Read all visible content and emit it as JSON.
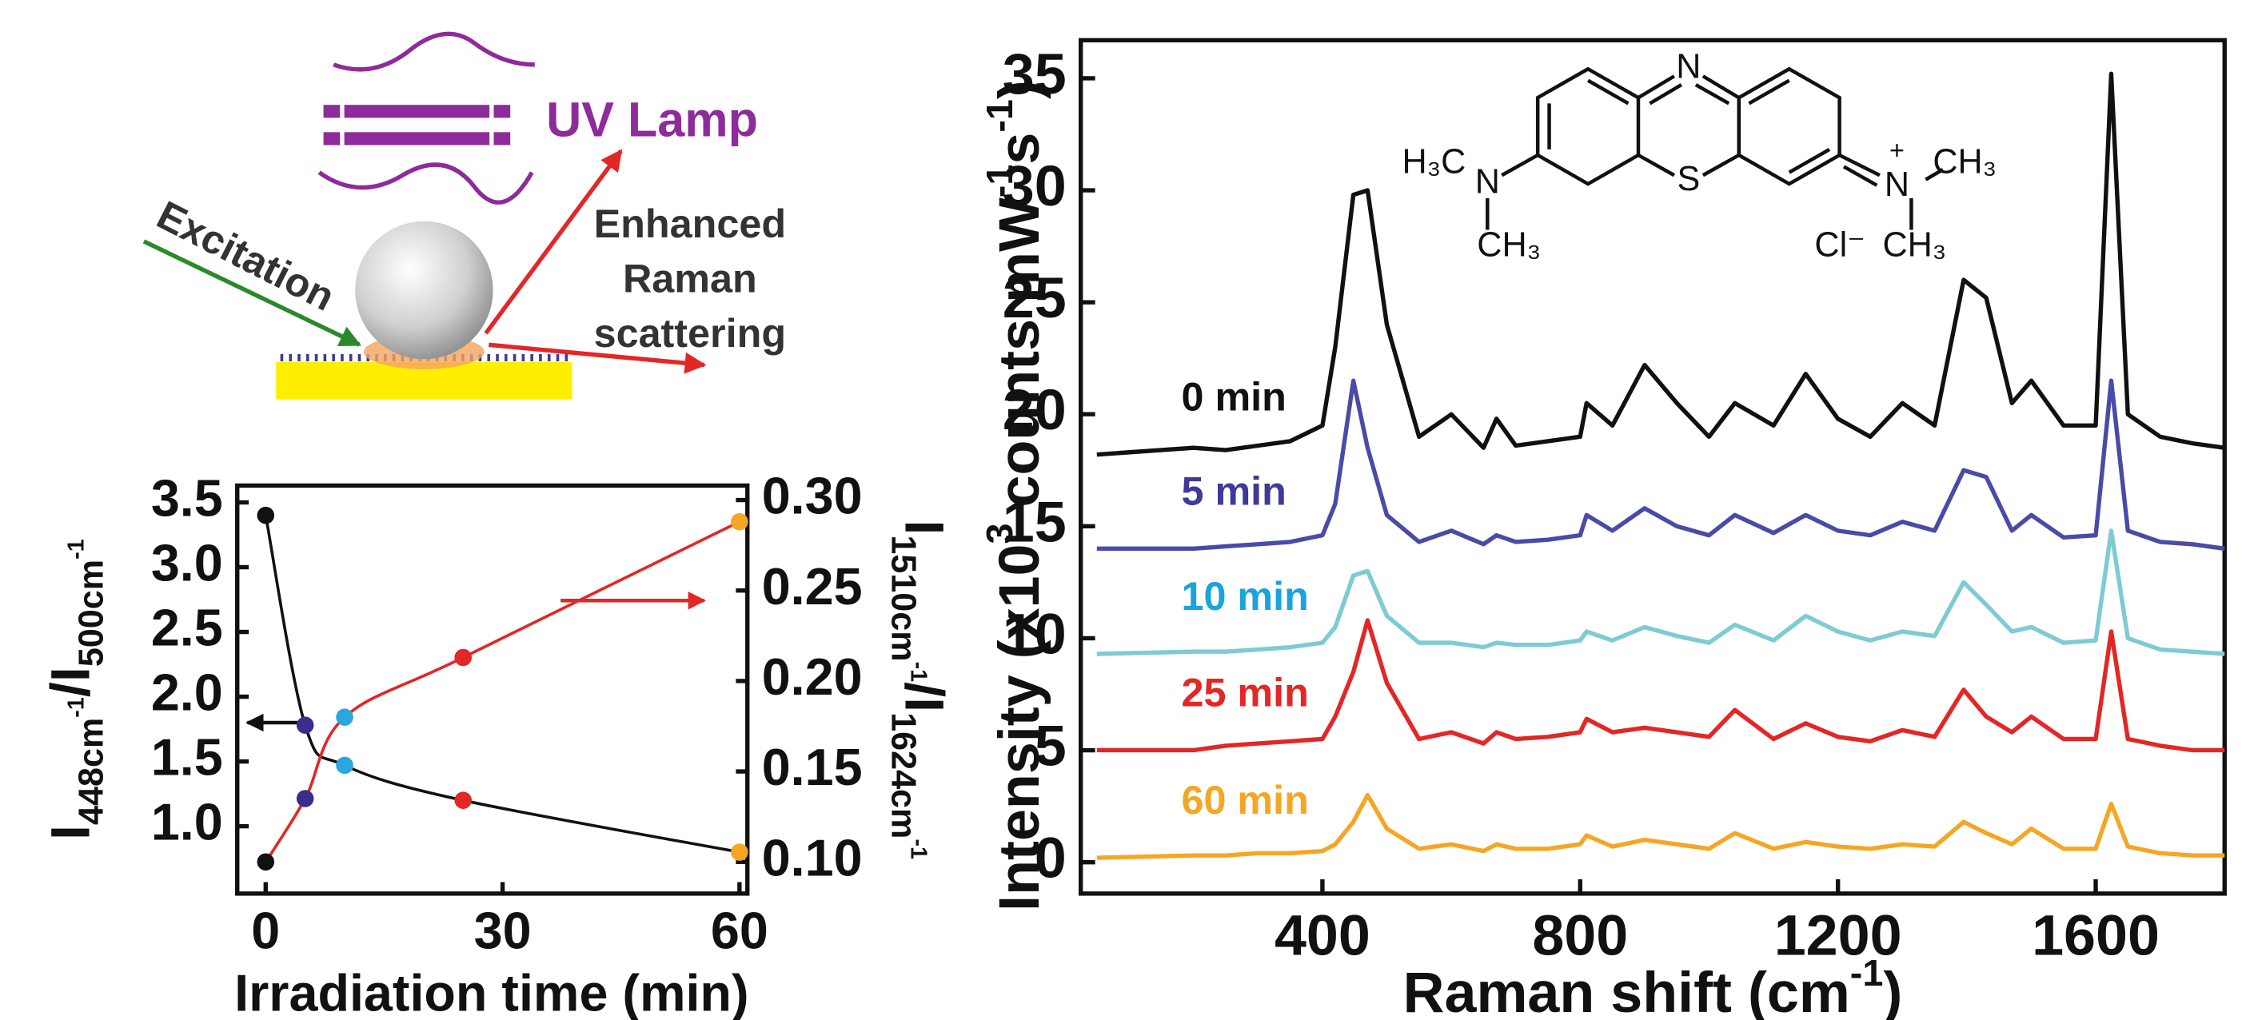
{
  "chart_data": [
    {
      "type": "line",
      "x_label": [
        "Raman shift (cm",
        "-1",
        ")"
      ],
      "y_label": [
        "Intensity (x10",
        "3",
        " counts mW",
        "-1",
        "s",
        "-1",
        ")"
      ],
      "x": [
        50,
        200,
        250,
        300,
        350,
        400,
        420,
        448,
        470,
        500,
        550,
        600,
        650,
        670,
        700,
        750,
        800,
        810,
        850,
        900,
        950,
        1000,
        1040,
        1100,
        1150,
        1200,
        1250,
        1300,
        1350,
        1395,
        1430,
        1470,
        1500,
        1550,
        1600,
        1624,
        1650,
        1700,
        1750,
        1800
      ],
      "xlim": [
        25,
        1800
      ],
      "xticks": [
        400,
        800,
        1200,
        1600
      ],
      "ylim": [
        -1.4,
        36.7
      ],
      "yticks": [
        0,
        5,
        10,
        15,
        20,
        25,
        30,
        35
      ],
      "series": [
        {
          "name": "0 min",
          "color": "#111111",
          "label_color": "#111111",
          "values": [
            18.2,
            18.5,
            18.4,
            18.6,
            18.8,
            19.5,
            23,
            29.8,
            30,
            24,
            19,
            20,
            18.5,
            19.8,
            18.6,
            18.8,
            19,
            20.5,
            19.5,
            22.2,
            20.5,
            19,
            20.5,
            19.5,
            21.8,
            19.8,
            19,
            20.5,
            19.5,
            26,
            25.2,
            20.5,
            21.5,
            19.5,
            19.5,
            35.2,
            20,
            19,
            18.7,
            18.5
          ]
        },
        {
          "name": "5 min",
          "color": "#4a4aa8",
          "label_color": "#3d3a9a",
          "values": [
            14,
            14,
            14.1,
            14.2,
            14.3,
            14.6,
            16,
            21.5,
            18.5,
            15.5,
            14.3,
            14.8,
            14.2,
            14.6,
            14.3,
            14.4,
            14.6,
            15.5,
            14.8,
            15.8,
            15,
            14.6,
            15.5,
            14.7,
            15.5,
            14.8,
            14.6,
            15.2,
            14.8,
            17.5,
            17.2,
            14.8,
            15.5,
            14.5,
            14.6,
            21.5,
            14.8,
            14.3,
            14.2,
            14
          ]
        },
        {
          "name": "10 min",
          "color": "#7ecbd2",
          "label_color": "#1aa3dc",
          "values": [
            9.3,
            9.4,
            9.4,
            9.5,
            9.6,
            9.8,
            10.5,
            12.8,
            13,
            11,
            9.8,
            9.8,
            9.6,
            9.8,
            9.7,
            9.7,
            9.9,
            10.3,
            9.9,
            10.5,
            10.1,
            9.8,
            10.6,
            9.9,
            11,
            10.3,
            9.9,
            10.3,
            10.1,
            12.5,
            11.5,
            10.3,
            10.5,
            9.8,
            9.9,
            14.8,
            10,
            9.5,
            9.4,
            9.3
          ]
        },
        {
          "name": "25 min",
          "color": "#e32626",
          "label_color": "#e32626",
          "values": [
            5,
            5,
            5.2,
            5.3,
            5.4,
            5.5,
            6.5,
            8.5,
            10.8,
            8,
            5.5,
            5.8,
            5.3,
            5.8,
            5.5,
            5.6,
            5.8,
            6.4,
            5.8,
            6,
            5.8,
            5.6,
            6.8,
            5.5,
            6.2,
            5.6,
            5.4,
            5.9,
            5.6,
            7.7,
            6.5,
            5.8,
            6.5,
            5.5,
            5.5,
            10.3,
            5.5,
            5.2,
            5,
            5
          ]
        },
        {
          "name": "60 min",
          "color": "#f5a623",
          "label_color": "#f5a623",
          "values": [
            0.2,
            0.3,
            0.3,
            0.4,
            0.4,
            0.5,
            0.8,
            1.8,
            3,
            1.5,
            0.6,
            0.8,
            0.5,
            0.8,
            0.6,
            0.6,
            0.8,
            1.2,
            0.7,
            1,
            0.8,
            0.6,
            1.3,
            0.6,
            0.9,
            0.7,
            0.6,
            0.8,
            0.7,
            1.8,
            1.3,
            0.8,
            1.5,
            0.6,
            0.6,
            2.6,
            0.7,
            0.4,
            0.3,
            0.3
          ]
        }
      ]
    },
    {
      "type": "scatter",
      "x_label": "Irradiation time (min)",
      "y_label": [
        "I",
        "448cm",
        "-1",
        "/I",
        "500cm",
        "-1"
      ],
      "y2_label": [
        "I",
        "1510cm",
        "-1",
        "/I",
        "1624cm",
        "-1"
      ],
      "x": [
        0,
        5,
        10,
        25,
        60
      ],
      "point_colors": [
        "#111111",
        "#3b2d8f",
        "#2aa7df",
        "#e32626",
        "#f5a623"
      ],
      "xlim": [
        -3.6,
        61
      ],
      "xticks": [
        0,
        30,
        60
      ],
      "ylim": [
        0.48,
        3.63
      ],
      "yticks": [
        {
          "value": 1,
          "label": "1.0"
        },
        1.5,
        {
          "value": 2,
          "label": "2.0"
        },
        2.5,
        {
          "value": 3,
          "label": "3.0"
        },
        3.5
      ],
      "y2lim": [
        0.0825,
        0.308
      ],
      "y2ticks": [
        {
          "value": 0.1,
          "label": "0.10"
        },
        0.15,
        {
          "value": 0.2,
          "label": "0.20"
        },
        0.25,
        {
          "value": 0.3,
          "label": "0.30"
        }
      ],
      "series": [
        {
          "color": "#111111",
          "values": [
            3.4,
            1.78,
            1.47,
            1.2,
            0.8
          ]
        },
        {
          "color": "#e32626",
          "axis": "y2",
          "values": [
            0.1,
            0.135,
            0.18,
            0.213,
            0.288
          ]
        }
      ]
    }
  ],
  "schematic": {
    "lamp": "UV Lamp",
    "excitation": "Excitation",
    "scattered": [
      "Enhanced",
      "Raman",
      "scattering"
    ]
  },
  "molecule": {
    "labels": [
      "N",
      "S",
      "H₃C",
      "N",
      "CH₃",
      "N",
      "+",
      "CH₃",
      "Cl⁻",
      "CH₃"
    ]
  }
}
